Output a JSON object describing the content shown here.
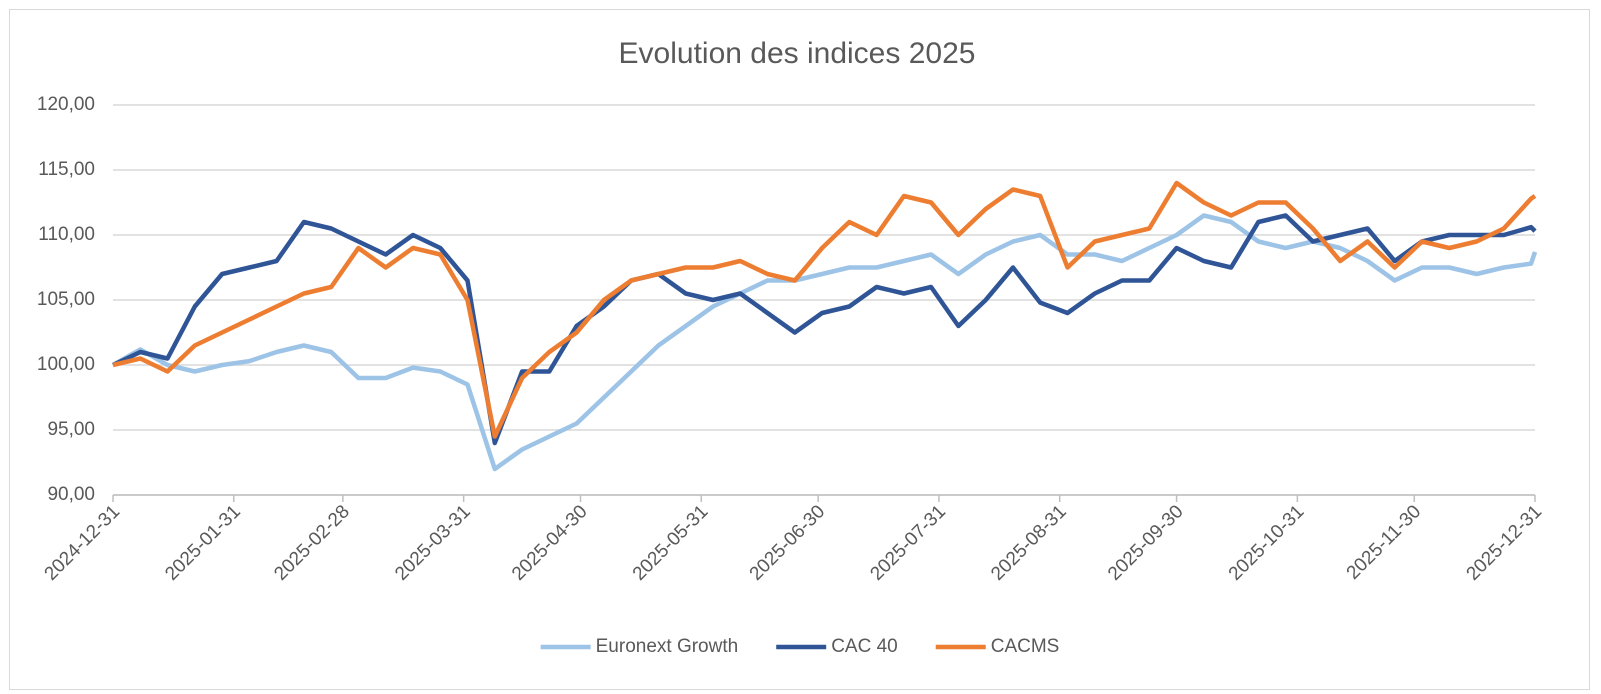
{
  "chart_data": {
    "type": "line",
    "title": "Evolution des indices 2025",
    "x": [
      "2024-12-31",
      "2025-01-07",
      "2025-01-14",
      "2025-01-21",
      "2025-01-28",
      "2025-02-04",
      "2025-02-11",
      "2025-02-18",
      "2025-02-25",
      "2025-03-04",
      "2025-03-11",
      "2025-03-18",
      "2025-03-25",
      "2025-04-01",
      "2025-04-08",
      "2025-04-15",
      "2025-04-22",
      "2025-04-29",
      "2025-05-06",
      "2025-05-13",
      "2025-05-20",
      "2025-05-27",
      "2025-06-03",
      "2025-06-10",
      "2025-06-17",
      "2025-06-24",
      "2025-07-01",
      "2025-07-08",
      "2025-07-15",
      "2025-07-22",
      "2025-07-29",
      "2025-08-05",
      "2025-08-12",
      "2025-08-19",
      "2025-08-26",
      "2025-09-02",
      "2025-09-09",
      "2025-09-16",
      "2025-09-23",
      "2025-09-30",
      "2025-10-07",
      "2025-10-14",
      "2025-10-21",
      "2025-10-28",
      "2025-11-04",
      "2025-11-11",
      "2025-11-18",
      "2025-11-25",
      "2025-12-02",
      "2025-12-09",
      "2025-12-16",
      "2025-12-23",
      "2025-12-30",
      "2025-12-31"
    ],
    "series": [
      {
        "name": "Euronext Growth",
        "color": "#9dc3e6",
        "values": [
          100,
          101.2,
          100,
          99.5,
          100,
          100.3,
          101,
          101.5,
          101,
          99,
          99,
          99.8,
          99.5,
          98.5,
          92,
          93.5,
          94.5,
          95.5,
          97.5,
          99.5,
          101.5,
          103,
          104.5,
          105.5,
          106.5,
          106.5,
          107,
          107.5,
          107.5,
          108,
          108.5,
          107,
          108.5,
          109.5,
          110,
          108.5,
          108.5,
          108,
          109,
          110,
          111.5,
          111,
          109.5,
          109,
          109.5,
          109,
          108,
          106.5,
          107.5,
          107.5,
          107,
          107.5,
          107.8,
          108.7
        ]
      },
      {
        "name": "CAC 40",
        "color": "#2f5597",
        "values": [
          100,
          101,
          100.5,
          104.5,
          107,
          107.5,
          108,
          111,
          110.5,
          109.5,
          108.5,
          110,
          109,
          106.5,
          94,
          99.5,
          99.5,
          103,
          104.5,
          106.5,
          107,
          105.5,
          105,
          105.5,
          104,
          102.5,
          104,
          104.5,
          106,
          105.5,
          106,
          103,
          105,
          107.5,
          104.8,
          104,
          105.5,
          106.5,
          106.5,
          109,
          108,
          107.5,
          111,
          111.5,
          109.5,
          110,
          110.5,
          108,
          109.5,
          110,
          110,
          110,
          110.6,
          110.3
        ]
      },
      {
        "name": "CACMS",
        "color": "#ed7d31",
        "values": [
          100,
          100.5,
          99.5,
          101.5,
          102.5,
          103.5,
          104.5,
          105.5,
          106,
          109,
          107.5,
          109,
          108.5,
          105,
          94.5,
          99,
          101,
          102.5,
          105,
          106.5,
          107,
          107.5,
          107.5,
          108,
          107,
          106.5,
          109,
          111,
          110,
          113,
          112.5,
          110,
          112,
          113.5,
          113,
          107.5,
          109.5,
          110,
          110.5,
          114,
          112.5,
          111.5,
          112.5,
          112.5,
          110.5,
          108,
          109.5,
          107.5,
          109.5,
          109,
          109.5,
          110.5,
          112.8,
          113
        ]
      }
    ],
    "xlim": [
      "2024-12-31",
      "2025-12-31"
    ],
    "xticks": [
      "2024-12-31",
      "2025-01-31",
      "2025-02-28",
      "2025-03-31",
      "2025-04-30",
      "2025-05-31",
      "2025-06-30",
      "2025-07-31",
      "2025-08-31",
      "2025-09-30",
      "2025-10-31",
      "2025-11-30",
      "2025-12-31"
    ],
    "ylim": [
      90,
      120
    ],
    "yticks": [
      {
        "value": 90,
        "label": "90,00"
      },
      {
        "value": 95,
        "label": "95,00"
      },
      {
        "value": 100,
        "label": "100,00"
      },
      {
        "value": 105,
        "label": "105,00"
      },
      {
        "value": 110,
        "label": "110,00"
      },
      {
        "value": 115,
        "label": "115,00"
      },
      {
        "value": 120,
        "label": "120,00"
      }
    ],
    "grid": true,
    "legend": "bottom"
  }
}
